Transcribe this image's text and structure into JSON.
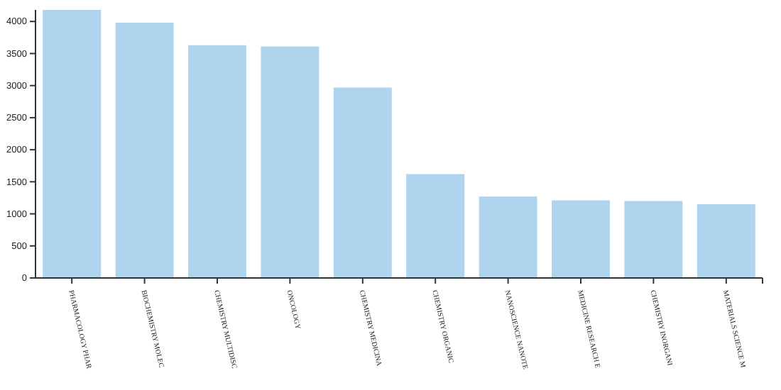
{
  "chart_data": {
    "type": "bar",
    "categories": [
      "PHARMACOLOGY PHAR",
      "BIOCHEMISTRY MOLEC",
      "CHEMISTRY MULTIDISC",
      "ONCOLOGY",
      "CHEMISTRY MEDICINA",
      "CHEMISTRY ORGANIC",
      "NANOSCIENCE NANOTE",
      "MEDICINE RESEARCH E",
      "CHEMISTRY INORGANI",
      "MATERIALS SCIENCE M"
    ],
    "values": [
      4180,
      3980,
      3630,
      3610,
      2970,
      1620,
      1270,
      1210,
      1200,
      1150
    ],
    "color": "#aed4ee",
    "ylim": [
      0,
      4180
    ],
    "yticks": [
      0,
      500,
      1000,
      1500,
      2000,
      2500,
      3000,
      3500,
      4000
    ],
    "grid": false
  }
}
